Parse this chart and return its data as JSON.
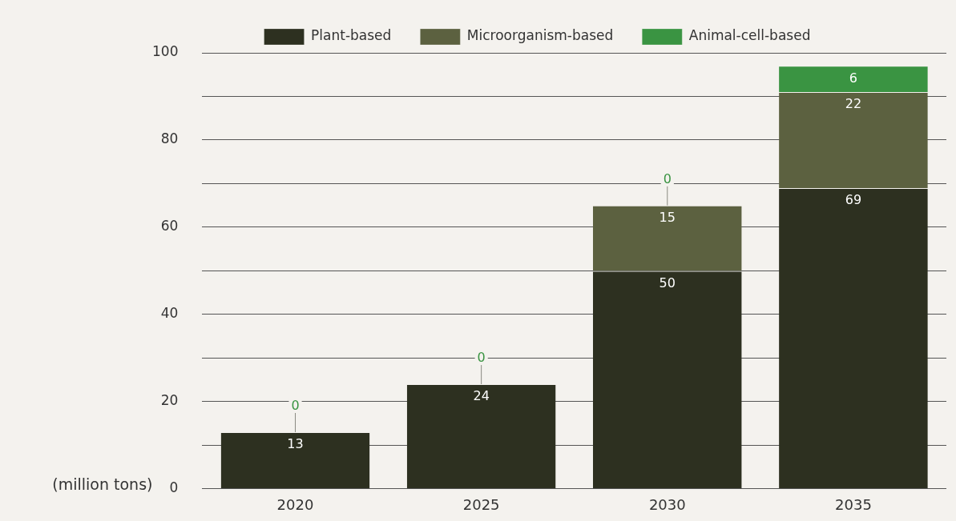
{
  "chart_data": {
    "type": "bar",
    "stacked": true,
    "ylabel": "(million tons)",
    "categories": [
      "2020",
      "2025",
      "2030",
      "2035"
    ],
    "series": [
      {
        "name": "Plant-based",
        "color": "#2d3020",
        "values": [
          13,
          24,
          50,
          69
        ],
        "value_labels": [
          "13",
          "24",
          "50",
          "69"
        ]
      },
      {
        "name": "Microorganism-based",
        "color": "#5c6140",
        "values": [
          0,
          0,
          15,
          22
        ],
        "value_labels": [
          null,
          null,
          "15",
          "22"
        ]
      },
      {
        "name": "Animal-cell-based",
        "color": "#3a9442",
        "values": [
          0,
          0,
          0,
          6
        ],
        "value_labels": [
          "0",
          "0",
          "0",
          "6"
        ]
      }
    ],
    "ylim": [
      0,
      100
    ],
    "yticks": [
      0,
      {
        "value": 10,
        "label": null
      },
      20,
      {
        "value": 30,
        "label": null
      },
      40,
      {
        "value": 50,
        "label": null
      },
      60,
      {
        "value": 70,
        "label": null
      },
      80,
      {
        "value": 90,
        "label": null
      },
      100
    ],
    "grid": "y",
    "legend": "top"
  }
}
